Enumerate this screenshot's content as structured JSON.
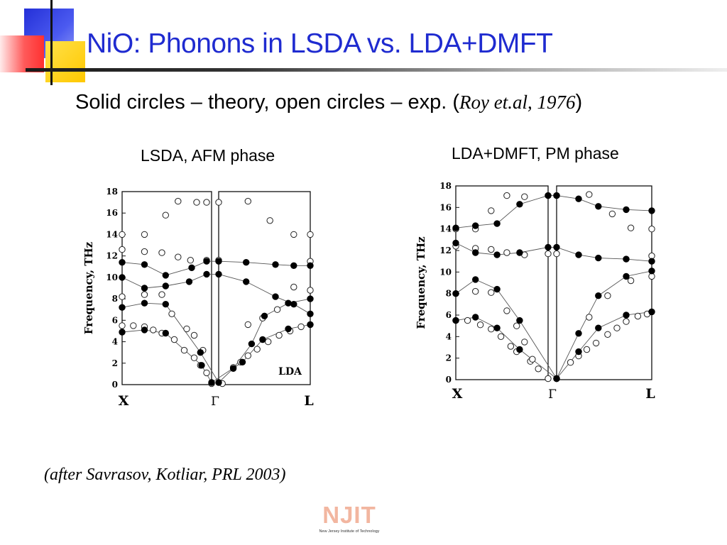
{
  "slide": {
    "title": "NiO: Phonons in LSDA vs. LDA+DMFT",
    "subtitle": "Solid circles – theory, open circles – exp. (",
    "subtitle_cite": "Roy et.al, 1976",
    "subtitle_close": ")",
    "credit": "(after Savrasov, Kotliar, PRL 2003)",
    "logo_text": "NJIT",
    "logo_tagline": "New Jersey Institute of Technology",
    "colors": {
      "title": "#1f2bd0",
      "deco_red": "#ff4a4a",
      "deco_yellow": "#ffd21f",
      "deco_blue": "#2f3fe0"
    }
  },
  "chart_data": [
    {
      "type": "scatter",
      "title": "LSDA, AFM phase",
      "ylabel": "Frequency, THz",
      "ylim": [
        0,
        18
      ],
      "yticks": [
        "0",
        "2",
        "4",
        "6",
        "8",
        "10",
        "12",
        "14",
        "16",
        "18"
      ],
      "x_points": [
        "X",
        "Γ",
        "L"
      ],
      "annotation": "LDA",
      "legend": {
        "filled": "theory",
        "open": "exp."
      },
      "theory_points": [
        [
          0.0,
          4.9
        ],
        [
          0.18,
          5.1
        ],
        [
          0.35,
          4.8
        ],
        [
          0.64,
          1.8
        ],
        [
          0.72,
          0.2
        ],
        [
          0.87,
          2.1
        ],
        [
          0.98,
          4.2
        ],
        [
          1.12,
          5.2
        ],
        [
          1.24,
          5.6
        ],
        [
          0.0,
          7.2
        ],
        [
          0.18,
          7.6
        ],
        [
          0.35,
          7.5
        ],
        [
          0.63,
          3.0
        ],
        [
          0.74,
          0.2
        ],
        [
          0.82,
          1.5
        ],
        [
          0.92,
          3.8
        ],
        [
          0.99,
          6.4
        ],
        [
          1.12,
          7.6
        ],
        [
          1.24,
          8.0
        ],
        [
          0.0,
          10.0
        ],
        [
          0.18,
          9.0
        ],
        [
          0.35,
          9.2
        ],
        [
          0.54,
          9.6
        ],
        [
          0.68,
          10.3
        ],
        [
          0.74,
          10.3
        ],
        [
          0.89,
          9.6
        ],
        [
          1.05,
          8.2
        ],
        [
          1.15,
          7.5
        ],
        [
          1.24,
          6.6
        ],
        [
          0.0,
          11.4
        ],
        [
          0.18,
          11.2
        ],
        [
          0.35,
          10.2
        ],
        [
          0.56,
          10.9
        ],
        [
          0.68,
          11.5
        ],
        [
          0.74,
          11.5
        ],
        [
          0.89,
          11.4
        ],
        [
          1.05,
          11.2
        ],
        [
          1.15,
          11.1
        ],
        [
          1.24,
          11.1
        ]
      ],
      "exp_points": [
        [
          0.0,
          5.5
        ],
        [
          0.09,
          5.5
        ],
        [
          0.18,
          5.4
        ],
        [
          0.25,
          5.1
        ],
        [
          0.32,
          4.8
        ],
        [
          0.42,
          4.2
        ],
        [
          0.5,
          3.2
        ],
        [
          0.58,
          2.5
        ],
        [
          0.63,
          1.8
        ],
        [
          0.68,
          1.1
        ],
        [
          0.72,
          0.1
        ],
        [
          0.76,
          0.1
        ],
        [
          0.82,
          1.6
        ],
        [
          0.86,
          2.1
        ],
        [
          0.9,
          2.7
        ],
        [
          0.95,
          3.3
        ],
        [
          1.01,
          4.0
        ],
        [
          1.07,
          4.6
        ],
        [
          1.13,
          5.0
        ],
        [
          1.19,
          5.4
        ],
        [
          1.24,
          5.6
        ],
        [
          0.0,
          8.2
        ],
        [
          0.18,
          8.4
        ],
        [
          0.32,
          8.4
        ],
        [
          0.4,
          6.6
        ],
        [
          0.52,
          5.2
        ],
        [
          0.58,
          4.6
        ],
        [
          0.65,
          3.2
        ],
        [
          0.9,
          5.6
        ],
        [
          0.98,
          6.2
        ],
        [
          1.06,
          7.0
        ],
        [
          1.15,
          9.1
        ],
        [
          1.24,
          8.8
        ],
        [
          0.0,
          12.6
        ],
        [
          0.18,
          12.4
        ],
        [
          0.32,
          12.3
        ],
        [
          0.45,
          11.9
        ],
        [
          0.55,
          11.6
        ],
        [
          0.68,
          11.6
        ],
        [
          0.74,
          11.6
        ],
        [
          1.24,
          11.5
        ],
        [
          0.0,
          14.0
        ],
        [
          0.18,
          14.0
        ],
        [
          0.35,
          15.8
        ],
        [
          0.45,
          17.1
        ],
        [
          0.6,
          17.0
        ],
        [
          0.68,
          17.0
        ],
        [
          0.74,
          17.0
        ],
        [
          0.9,
          17.1
        ],
        [
          1.02,
          15.3
        ],
        [
          1.15,
          14.0
        ],
        [
          1.24,
          14.0
        ]
      ]
    },
    {
      "type": "scatter",
      "title": "LDA+DMFT, PM phase",
      "ylabel": "Frequency, THz",
      "ylim": [
        0,
        18
      ],
      "yticks": [
        "0",
        "2",
        "4",
        "6",
        "8",
        "10",
        "12",
        "14",
        "16",
        "18"
      ],
      "x_points": [
        "X",
        "Γ",
        "L"
      ],
      "legend": {
        "filled": "theory",
        "open": "exp."
      },
      "theory_points": [
        [
          0.0,
          5.5
        ],
        [
          0.2,
          5.8
        ],
        [
          0.42,
          4.8
        ],
        [
          0.65,
          2.8
        ],
        [
          0.98,
          0.1
        ],
        [
          1.17,
          2.6
        ],
        [
          1.34,
          4.8
        ],
        [
          1.58,
          6.0
        ],
        [
          1.8,
          6.3
        ],
        [
          0.0,
          8.0
        ],
        [
          0.2,
          9.3
        ],
        [
          0.42,
          8.4
        ],
        [
          0.65,
          5.5
        ],
        [
          0.98,
          0.1
        ],
        [
          1.17,
          4.3
        ],
        [
          1.34,
          7.8
        ],
        [
          1.58,
          9.6
        ],
        [
          1.8,
          10.1
        ],
        [
          0.0,
          12.7
        ],
        [
          0.2,
          11.8
        ],
        [
          0.42,
          11.6
        ],
        [
          0.65,
          11.8
        ],
        [
          0.94,
          12.3
        ],
        [
          0.98,
          12.3
        ],
        [
          1.17,
          11.6
        ],
        [
          1.34,
          11.3
        ],
        [
          1.58,
          11.2
        ],
        [
          1.8,
          11.0
        ],
        [
          0.0,
          14.1
        ],
        [
          0.2,
          14.3
        ],
        [
          0.42,
          14.5
        ],
        [
          0.65,
          16.3
        ],
        [
          0.94,
          17.1
        ],
        [
          0.98,
          17.1
        ],
        [
          1.17,
          16.8
        ],
        [
          1.34,
          16.1
        ],
        [
          1.58,
          15.8
        ],
        [
          1.8,
          15.7
        ]
      ],
      "exp_points": [
        [
          0.0,
          5.5
        ],
        [
          0.12,
          5.5
        ],
        [
          0.25,
          5.1
        ],
        [
          0.36,
          4.7
        ],
        [
          0.46,
          4.0
        ],
        [
          0.56,
          3.1
        ],
        [
          0.62,
          2.6
        ],
        [
          0.76,
          1.7
        ],
        [
          0.84,
          1.0
        ],
        [
          0.94,
          0.1
        ],
        [
          0.98,
          0.1
        ],
        [
          1.1,
          1.6
        ],
        [
          1.17,
          2.2
        ],
        [
          1.24,
          2.8
        ],
        [
          1.32,
          3.4
        ],
        [
          1.42,
          4.2
        ],
        [
          1.5,
          4.8
        ],
        [
          1.58,
          5.4
        ],
        [
          1.68,
          5.9
        ],
        [
          1.76,
          6.1
        ],
        [
          1.8,
          6.3
        ],
        [
          0.0,
          8.0
        ],
        [
          0.2,
          8.2
        ],
        [
          0.36,
          8.1
        ],
        [
          0.52,
          6.4
        ],
        [
          0.62,
          5.0
        ],
        [
          0.7,
          3.5
        ],
        [
          0.78,
          1.9
        ],
        [
          1.26,
          5.8
        ],
        [
          1.42,
          7.8
        ],
        [
          1.62,
          9.2
        ],
        [
          1.8,
          9.6
        ],
        [
          0.0,
          12.4
        ],
        [
          0.2,
          12.2
        ],
        [
          0.36,
          12.1
        ],
        [
          0.52,
          11.8
        ],
        [
          0.7,
          11.6
        ],
        [
          0.94,
          11.7
        ],
        [
          0.98,
          11.7
        ],
        [
          1.8,
          11.5
        ],
        [
          0.0,
          14.0
        ],
        [
          0.2,
          14.0
        ],
        [
          0.36,
          15.7
        ],
        [
          0.52,
          17.1
        ],
        [
          0.7,
          17.0
        ],
        [
          0.94,
          17.1
        ],
        [
          0.98,
          17.1
        ],
        [
          1.26,
          17.2
        ],
        [
          1.46,
          15.4
        ],
        [
          1.62,
          14.1
        ],
        [
          1.8,
          14.0
        ]
      ]
    }
  ]
}
